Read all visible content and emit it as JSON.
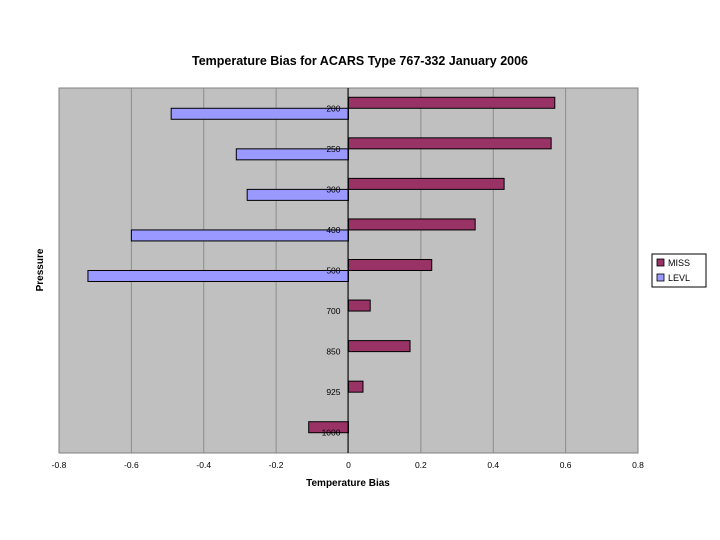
{
  "chart_data": {
    "type": "bar",
    "orientation": "horizontal",
    "title": "Temperature Bias for ACARS Type 767-332 January 2006",
    "xlabel": "Temperature Bias",
    "ylabel": "Pressure",
    "xlim": [
      -0.8,
      0.8
    ],
    "x_ticks": [
      "-0.8",
      "-0.6",
      "-0.4",
      "-0.2",
      "0",
      "0.2",
      "0.4",
      "0.6",
      "0.8"
    ],
    "categories": [
      "200",
      "250",
      "300",
      "400",
      "500",
      "700",
      "850",
      "925",
      "1000"
    ],
    "series": [
      {
        "name": "MISS",
        "color": "#993366",
        "values": [
          0.57,
          0.56,
          0.43,
          0.35,
          0.23,
          0.06,
          0.17,
          0.04,
          -0.11
        ]
      },
      {
        "name": "LEVL",
        "color": "#9999ff",
        "values": [
          -0.49,
          -0.31,
          -0.28,
          -0.6,
          -0.72,
          null,
          null,
          null,
          null
        ]
      }
    ],
    "grid": "vertical major gridlines",
    "plot_background": "#c0c0c0",
    "legend_position": "right"
  }
}
